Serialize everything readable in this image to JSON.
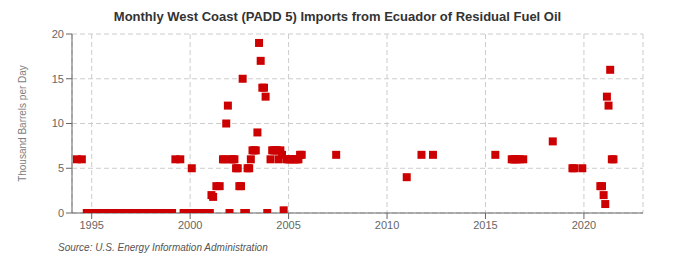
{
  "chart_data": {
    "type": "scatter",
    "title": "Monthly West Coast (PADD 5) Imports from Ecuador of Residual Fuel Oil",
    "ylabel": "Thousand Barrels per Day",
    "source": "Source: U.S. Energy Information Administration",
    "color": "#cc0000",
    "marker": "square",
    "grid": true,
    "xlim": [
      1994.0,
      2023.0
    ],
    "ylim": [
      0,
      20
    ],
    "xticks": [
      1995,
      2000,
      2005,
      2010,
      2015,
      2020
    ],
    "yticks": [
      0,
      5,
      10,
      15,
      20
    ],
    "x": [
      1994.25,
      1994.5,
      1994.75,
      1995.0,
      1995.083,
      1995.167,
      1995.25,
      1995.333,
      1995.417,
      1995.5,
      1995.583,
      1995.667,
      1995.75,
      1995.833,
      1995.917,
      1996.0,
      1996.083,
      1996.167,
      1996.25,
      1996.333,
      1996.417,
      1996.5,
      1996.583,
      1996.667,
      1996.75,
      1996.833,
      1996.917,
      1997.0,
      1997.083,
      1997.167,
      1997.25,
      1997.333,
      1997.417,
      1997.5,
      1997.583,
      1997.667,
      1997.75,
      1997.833,
      1997.917,
      1998.0,
      1998.083,
      1998.167,
      1998.25,
      1998.333,
      1998.417,
      1998.5,
      1998.583,
      1998.667,
      1998.75,
      1998.833,
      1998.917,
      1999.0,
      1999.083,
      1999.25,
      1999.5,
      1999.667,
      1999.75,
      1999.833,
      1999.917,
      2000.0,
      2000.083,
      2000.25,
      2000.333,
      2000.417,
      2000.5,
      2000.667,
      2000.75,
      2000.833,
      2000.917,
      2001.0,
      2001.083,
      2001.167,
      2001.333,
      2001.5,
      2001.667,
      2001.75,
      2001.833,
      2001.917,
      2002.0,
      2002.083,
      2002.167,
      2002.25,
      2002.333,
      2002.417,
      2002.5,
      2002.583,
      2002.667,
      2002.75,
      2002.833,
      2002.917,
      2003.0,
      2003.083,
      2003.167,
      2003.25,
      2003.333,
      2003.417,
      2003.5,
      2003.583,
      2003.667,
      2003.75,
      2003.833,
      2003.917,
      2004.083,
      2004.167,
      2004.25,
      2004.333,
      2004.417,
      2004.5,
      2004.583,
      2004.667,
      2004.75,
      2004.917,
      2005.0,
      2005.083,
      2005.25,
      2005.333,
      2005.417,
      2005.5,
      2005.583,
      2005.667,
      2007.417,
      2011.0,
      2011.75,
      2012.333,
      2015.5,
      2016.333,
      2016.417,
      2016.5,
      2016.583,
      2016.75,
      2016.917,
      2018.417,
      2019.417,
      2019.5,
      2019.917,
      2020.833,
      2020.917,
      2021.0,
      2021.083,
      2021.167,
      2021.25,
      2021.333,
      2021.417,
      2021.5
    ],
    "values": [
      6.0,
      6.0,
      0,
      0,
      0,
      0,
      0,
      0,
      0,
      0,
      0,
      0,
      0,
      0,
      0,
      0,
      0,
      0,
      0,
      0,
      0,
      0,
      0,
      0,
      0,
      0,
      0,
      0,
      0,
      0,
      0,
      0,
      0,
      0,
      0,
      0,
      0,
      0,
      0,
      0,
      0,
      0,
      0,
      0,
      0,
      0,
      0,
      0,
      0,
      0,
      0,
      0,
      0,
      6.0,
      6.0,
      0,
      0,
      0,
      0,
      0,
      5.0,
      0,
      0,
      0,
      0,
      0,
      0,
      0,
      0,
      0,
      2.0,
      1.8,
      3.0,
      3.0,
      6.0,
      6.0,
      10.0,
      12.0,
      0,
      6.0,
      6.0,
      6.0,
      5.0,
      5.0,
      3.0,
      3.0,
      15.0,
      0,
      0,
      5.0,
      5.0,
      6.0,
      7.0,
      7.0,
      7.0,
      9.0,
      19.0,
      17.0,
      14.0,
      14.0,
      13.0,
      0,
      6.0,
      7.0,
      7.0,
      7.0,
      7.0,
      6.0,
      7.0,
      6.5,
      0.3,
      6.0,
      6.0,
      6.0,
      6.0,
      6.0,
      6.0,
      6.0,
      6.5,
      6.5,
      6.5,
      4.0,
      6.5,
      6.5,
      6.5,
      6.0,
      6.0,
      6.0,
      6.0,
      6.0,
      6.0,
      8.0,
      5.0,
      5.0,
      5.0,
      3.0,
      3.0,
      2.0,
      1.0,
      13.0,
      12.0,
      16.0,
      6.0,
      6.0
    ]
  }
}
